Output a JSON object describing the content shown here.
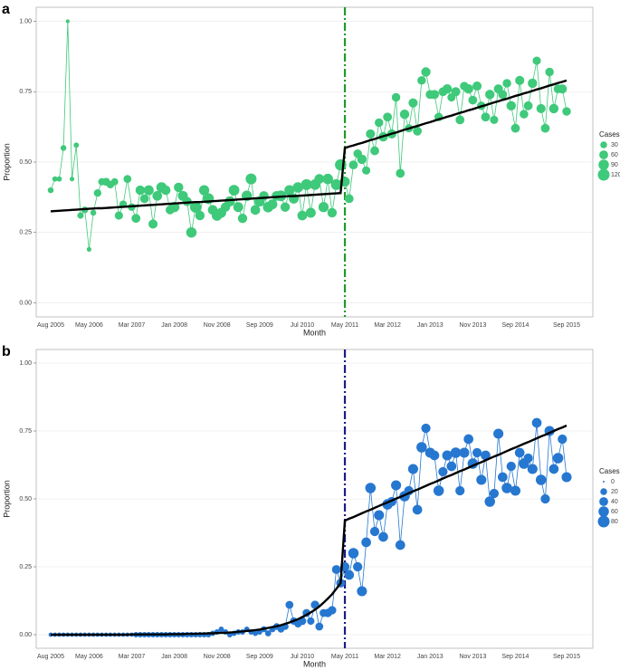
{
  "chart_data": [
    {
      "type": "line",
      "panel_label": "a",
      "x_label": "Month",
      "y_label": "Proportion",
      "categories": [
        "Aug 2005",
        null,
        null,
        null,
        null,
        null,
        null,
        null,
        null,
        "May 2006",
        null,
        null,
        null,
        null,
        null,
        null,
        null,
        null,
        null,
        "Mar 2007",
        null,
        null,
        null,
        null,
        null,
        null,
        null,
        null,
        null,
        "Jan 2008",
        null,
        null,
        null,
        null,
        null,
        null,
        null,
        null,
        null,
        "Nov 2008",
        null,
        null,
        null,
        null,
        null,
        null,
        null,
        null,
        null,
        "Sep 2009",
        null,
        null,
        null,
        null,
        null,
        null,
        null,
        null,
        null,
        "Jul 2010",
        null,
        null,
        null,
        null,
        null,
        null,
        null,
        null,
        null,
        "May 2011",
        null,
        null,
        null,
        null,
        null,
        null,
        null,
        null,
        null,
        "Mar 2012",
        null,
        null,
        null,
        null,
        null,
        null,
        null,
        null,
        null,
        "Jan 2013",
        null,
        null,
        null,
        null,
        null,
        null,
        null,
        null,
        null,
        "Nov 2013",
        null,
        null,
        null,
        null,
        null,
        null,
        null,
        null,
        null,
        "Sep 2014",
        null,
        null,
        null,
        null,
        null,
        null,
        null,
        null,
        null,
        null,
        null,
        "Sep 2015"
      ],
      "series": [
        {
          "color": "#3fc97a",
          "values": [
            0.4,
            0.44,
            0.44,
            0.55,
            1.0,
            0.44,
            0.56,
            0.31,
            0.33,
            0.19,
            0.32,
            0.39,
            0.43,
            0.43,
            0.42,
            0.43,
            0.31,
            0.35,
            0.44,
            0.34,
            0.3,
            0.4,
            0.37,
            0.4,
            0.28,
            0.38,
            0.41,
            0.4,
            0.33,
            0.34,
            0.41,
            0.38,
            0.36,
            0.25,
            0.34,
            0.31,
            0.4,
            0.37,
            0.33,
            0.31,
            0.32,
            0.34,
            0.36,
            0.4,
            0.34,
            0.3,
            0.38,
            0.44,
            0.33,
            0.36,
            0.38,
            0.34,
            0.35,
            0.38,
            0.38,
            0.34,
            0.4,
            0.37,
            0.41,
            0.31,
            0.42,
            0.32,
            0.42,
            0.44,
            0.34,
            0.44,
            0.32,
            0.42,
            0.49,
            0.43,
            0.37,
            0.49,
            0.53,
            0.51,
            0.47,
            0.6,
            0.54,
            0.64,
            0.59,
            0.66,
            0.6,
            0.73,
            0.46,
            0.67,
            0.62,
            0.71,
            0.61,
            0.79,
            0.82,
            0.74,
            0.74,
            0.66,
            0.75,
            0.76,
            0.73,
            0.75,
            0.65,
            0.77,
            0.76,
            0.72,
            0.77,
            0.7,
            0.66,
            0.74,
            0.65,
            0.76,
            0.74,
            0.78,
            0.7,
            0.62,
            0.79,
            0.67,
            0.7,
            0.78,
            0.86,
            0.69,
            0.62,
            0.82,
            0.69,
            0.76,
            0.76,
            0.68
          ],
          "sizes": [
            20,
            15,
            15,
            20,
            5,
            10,
            15,
            25,
            30,
            10,
            20,
            40,
            35,
            45,
            40,
            35,
            50,
            40,
            45,
            40,
            60,
            70,
            60,
            80,
            65,
            75,
            90,
            70,
            60,
            85,
            70,
            80,
            65,
            90,
            110,
            70,
            85,
            100,
            75,
            90,
            80,
            70,
            85,
            95,
            80,
            70,
            90,
            100,
            75,
            85,
            70,
            90,
            80,
            75,
            95,
            70,
            85,
            80,
            90,
            75,
            100,
            80,
            95,
            75,
            85,
            90,
            70,
            100,
            110,
            80,
            60,
            60,
            55,
            70,
            50,
            65,
            60,
            55,
            70,
            60,
            65,
            55,
            60,
            70,
            50,
            65,
            60,
            55,
            70,
            60,
            65,
            55,
            60,
            70,
            50,
            65,
            60,
            55,
            70,
            60,
            65,
            55,
            60,
            70,
            50,
            65,
            60,
            55,
            70,
            60,
            65,
            55,
            60,
            70,
            50,
            65,
            60,
            55,
            70,
            60,
            65,
            55
          ]
        }
      ],
      "fit": {
        "color": "#000000",
        "values": [
          0.325,
          0.326,
          0.327,
          0.328,
          0.329,
          0.33,
          0.331,
          0.332,
          0.333,
          0.334,
          0.335,
          0.336,
          0.336,
          0.337,
          0.338,
          0.339,
          0.34,
          0.341,
          0.342,
          0.343,
          0.344,
          0.345,
          0.346,
          0.347,
          0.348,
          0.349,
          0.35,
          0.351,
          0.352,
          0.353,
          0.354,
          0.355,
          0.356,
          0.357,
          0.358,
          0.358,
          0.359,
          0.36,
          0.361,
          0.362,
          0.363,
          0.364,
          0.365,
          0.366,
          0.367,
          0.368,
          0.369,
          0.37,
          0.371,
          0.372,
          0.373,
          0.374,
          0.375,
          0.376,
          0.377,
          0.378,
          0.379,
          0.379,
          0.38,
          0.381,
          0.382,
          0.383,
          0.384,
          0.385,
          0.386,
          0.387,
          0.388,
          0.389,
          0.39,
          0.55,
          0.555,
          0.559,
          0.564,
          0.568,
          0.573,
          0.578,
          0.582,
          0.587,
          0.592,
          0.596,
          0.601,
          0.605,
          0.61,
          0.615,
          0.619,
          0.624,
          0.628,
          0.633,
          0.638,
          0.642,
          0.647,
          0.652,
          0.656,
          0.661,
          0.665,
          0.67,
          0.675,
          0.679,
          0.684,
          0.688,
          0.693,
          0.698,
          0.702,
          0.707,
          0.712,
          0.716,
          0.721,
          0.725,
          0.73,
          0.735,
          0.739,
          0.744,
          0.748,
          0.753,
          0.758,
          0.762,
          0.767,
          0.772,
          0.776,
          0.781,
          0.785,
          0.79
        ]
      },
      "vline": {
        "at": "May 2011",
        "color": "#1e9a2a"
      },
      "ylim": [
        -0.05,
        1.05
      ],
      "yticks": [
        {
          "value": 0,
          "label": "0.00"
        },
        {
          "value": 0.25,
          "label": "0.25"
        },
        {
          "value": 0.5,
          "label": "0.50"
        },
        {
          "value": 0.75,
          "label": "0.75"
        },
        {
          "value": 1,
          "label": "1.00"
        }
      ],
      "grid": true,
      "legend": {
        "title": "Cases",
        "sizes": [
          30,
          60,
          90,
          120
        ],
        "position": "right"
      }
    },
    {
      "type": "line",
      "panel_label": "b",
      "x_label": "Month",
      "y_label": "Proportion",
      "categories": [
        "Aug 2005",
        null,
        null,
        null,
        null,
        null,
        null,
        null,
        null,
        "May 2006",
        null,
        null,
        null,
        null,
        null,
        null,
        null,
        null,
        null,
        "Mar 2007",
        null,
        null,
        null,
        null,
        null,
        null,
        null,
        null,
        null,
        "Jan 2008",
        null,
        null,
        null,
        null,
        null,
        null,
        null,
        null,
        null,
        "Nov 2008",
        null,
        null,
        null,
        null,
        null,
        null,
        null,
        null,
        null,
        "Sep 2009",
        null,
        null,
        null,
        null,
        null,
        null,
        null,
        null,
        null,
        "Jul 2010",
        null,
        null,
        null,
        null,
        null,
        null,
        null,
        null,
        null,
        "May 2011",
        null,
        null,
        null,
        null,
        null,
        null,
        null,
        null,
        null,
        "Mar 2012",
        null,
        null,
        null,
        null,
        null,
        null,
        null,
        null,
        null,
        "Jan 2013",
        null,
        null,
        null,
        null,
        null,
        null,
        null,
        null,
        null,
        "Nov 2013",
        null,
        null,
        null,
        null,
        null,
        null,
        null,
        null,
        null,
        "Sep 2014",
        null,
        null,
        null,
        null,
        null,
        null,
        null,
        null,
        null,
        null,
        null,
        "Sep 2015"
      ],
      "series": [
        {
          "color": "#2677d0",
          "values": [
            0,
            0,
            0,
            0,
            0,
            0,
            0,
            0,
            0,
            0,
            0,
            0,
            0,
            0,
            0,
            0,
            0,
            0,
            0,
            0,
            0,
            0,
            0,
            0,
            0,
            0,
            0,
            0,
            0,
            0,
            0,
            0,
            0,
            0,
            0,
            0,
            0,
            0,
            0.005,
            0.01,
            0.02,
            0.01,
            0,
            0.005,
            0.01,
            0.01,
            0.02,
            0.01,
            0.005,
            0.01,
            0.02,
            0.005,
            0.02,
            0.03,
            0.02,
            0.03,
            0.11,
            0.05,
            0.04,
            0.05,
            0.08,
            0.05,
            0.11,
            0.03,
            0.08,
            0.08,
            0.09,
            0.24,
            0.19,
            0.25,
            0.22,
            0.3,
            0.25,
            0.16,
            0.34,
            0.54,
            0.38,
            0.44,
            0.36,
            0.48,
            0.49,
            0.55,
            0.33,
            0.51,
            0.53,
            0.61,
            0.46,
            0.69,
            0.76,
            0.67,
            0.66,
            0.53,
            0.6,
            0.66,
            0.62,
            0.67,
            0.53,
            0.67,
            0.72,
            0.63,
            0.67,
            0.57,
            0.66,
            0.49,
            0.52,
            0.74,
            0.58,
            0.54,
            0.62,
            0.53,
            0.67,
            0.63,
            0.65,
            0.61,
            0.78,
            0.57,
            0.5,
            0.75,
            0.61,
            0.65,
            0.72,
            0.58
          ],
          "sizes": [
            5,
            5,
            5,
            5,
            5,
            5,
            5,
            5,
            5,
            5,
            5,
            5,
            5,
            5,
            5,
            5,
            5,
            5,
            5,
            5,
            10,
            10,
            10,
            10,
            10,
            10,
            10,
            10,
            10,
            10,
            10,
            10,
            10,
            10,
            10,
            10,
            10,
            10,
            10,
            10,
            10,
            10,
            10,
            10,
            10,
            10,
            10,
            10,
            10,
            10,
            15,
            15,
            15,
            20,
            20,
            20,
            30,
            25,
            25,
            30,
            30,
            25,
            35,
            30,
            30,
            35,
            35,
            40,
            40,
            45,
            50,
            60,
            45,
            55,
            50,
            60,
            45,
            55,
            50,
            60,
            45,
            55,
            50,
            60,
            45,
            55,
            50,
            60,
            45,
            55,
            50,
            60,
            45,
            55,
            50,
            60,
            45,
            55,
            50,
            60,
            45,
            55,
            50,
            60,
            45,
            55,
            50,
            60,
            45,
            55,
            50,
            60,
            45,
            55,
            50,
            60,
            45,
            55,
            50,
            60,
            45,
            55
          ]
        }
      ],
      "fit": {
        "color": "#000000",
        "values": [
          0,
          0,
          0,
          0,
          0,
          0,
          0,
          0,
          0,
          0,
          0,
          0,
          0,
          0,
          0,
          0,
          0,
          0,
          0,
          0.001,
          0.001,
          0.001,
          0.001,
          0.001,
          0.001,
          0.001,
          0.001,
          0.001,
          0.002,
          0.002,
          0.002,
          0.002,
          0.003,
          0.003,
          0.003,
          0.004,
          0.004,
          0.005,
          0.005,
          0.006,
          0.007,
          0.007,
          0.008,
          0.009,
          0.011,
          0.012,
          0.014,
          0.015,
          0.017,
          0.019,
          0.022,
          0.025,
          0.028,
          0.031,
          0.035,
          0.04,
          0.045,
          0.051,
          0.057,
          0.065,
          0.073,
          0.082,
          0.092,
          0.104,
          0.118,
          0.133,
          0.149,
          0.169,
          0.19,
          0.42,
          0.427,
          0.433,
          0.44,
          0.447,
          0.454,
          0.46,
          0.467,
          0.474,
          0.481,
          0.487,
          0.494,
          0.501,
          0.507,
          0.514,
          0.521,
          0.528,
          0.534,
          0.541,
          0.548,
          0.555,
          0.561,
          0.568,
          0.575,
          0.582,
          0.588,
          0.595,
          0.602,
          0.608,
          0.615,
          0.622,
          0.629,
          0.635,
          0.642,
          0.649,
          0.656,
          0.662,
          0.669,
          0.676,
          0.683,
          0.689,
          0.696,
          0.703,
          0.709,
          0.716,
          0.723,
          0.73,
          0.736,
          0.743,
          0.75,
          0.757,
          0.763,
          0.77
        ]
      },
      "vline": {
        "at": "May 2011",
        "color": "#1c1c8c"
      },
      "ylim": [
        -0.05,
        1.05
      ],
      "yticks": [
        {
          "value": 0,
          "label": "0.00"
        },
        {
          "value": 0.25,
          "label": "0.25"
        },
        {
          "value": 0.5,
          "label": "0.50"
        },
        {
          "value": 0.75,
          "label": "0.75"
        },
        {
          "value": 1,
          "label": "1.00"
        }
      ],
      "grid": true,
      "legend": {
        "title": "Cases",
        "sizes": [
          0,
          20,
          40,
          60,
          80
        ],
        "position": "right"
      }
    }
  ]
}
